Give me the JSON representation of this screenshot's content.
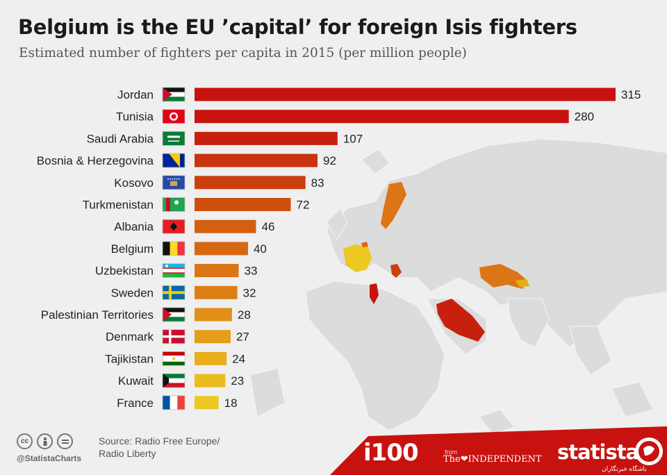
{
  "title": "Belgium is the EU ’capital’ for foreign Isis fighters",
  "subtitle": "Estimated number of fighters per capita in 2015 (per million people)",
  "chart_data": {
    "type": "bar",
    "orientation": "horizontal",
    "title": "Belgium is the EU ’capital’ for foreign Isis fighters",
    "subtitle": "Estimated number of fighters per capita in 2015 (per million people)",
    "categories": [
      "Jordan",
      "Tunisia",
      "Saudi Arabia",
      "Bosnia & Herzegovina",
      "Kosovo",
      "Turkmenistan",
      "Albania",
      "Belgium",
      "Uzbekistan",
      "Sweden",
      "Palestinian Territories",
      "Denmark",
      "Tajikistan",
      "Kuwait",
      "France"
    ],
    "values": [
      315,
      280,
      107,
      92,
      83,
      72,
      46,
      40,
      33,
      32,
      28,
      27,
      24,
      23,
      18
    ],
    "value_labels": [
      "315",
      "280",
      "107",
      "92",
      "83",
      "72",
      "46",
      "40",
      "33",
      "32",
      "28",
      "27",
      "24",
      "23",
      "18"
    ],
    "bar_colors": [
      "#c8120f",
      "#c8120f",
      "#c8200f",
      "#c9330e",
      "#cb3f0e",
      "#cd4f0e",
      "#d45f10",
      "#d76812",
      "#dc7515",
      "#de7f16",
      "#e28f18",
      "#e59d1a",
      "#e8ae1c",
      "#eabc1e",
      "#ecc820"
    ],
    "xlim": [
      0,
      315
    ],
    "grid": false,
    "legend": "none",
    "flag_icons": [
      "flag-jordan-icon",
      "flag-tunisia-icon",
      "flag-saudi-arabia-icon",
      "flag-bosnia-icon",
      "flag-kosovo-icon",
      "flag-turkmenistan-icon",
      "flag-albania-icon",
      "flag-belgium-icon",
      "flag-uzbekistan-icon",
      "flag-sweden-icon",
      "flag-palestine-icon",
      "flag-denmark-icon",
      "flag-tajikistan-icon",
      "flag-kuwait-icon",
      "flag-france-icon"
    ]
  },
  "footer": {
    "source": "Source: Radio Free Europe/\nRadio Liberty",
    "handle": "@StatistaCharts",
    "license_icons": [
      "cc-icon",
      "person-icon",
      "equals-icon"
    ],
    "cc_text": "cc",
    "brand_i100": "i100",
    "from_text": "from",
    "independent": "The❤INDEPENDENT",
    "statista": "statista",
    "persian_site": "باشگاه خبرنگاران"
  },
  "colors": {
    "accent_red": "#c8120f",
    "footer_band": "#c8120f",
    "background": "#efefef",
    "map_land": "#dcdcdc"
  }
}
